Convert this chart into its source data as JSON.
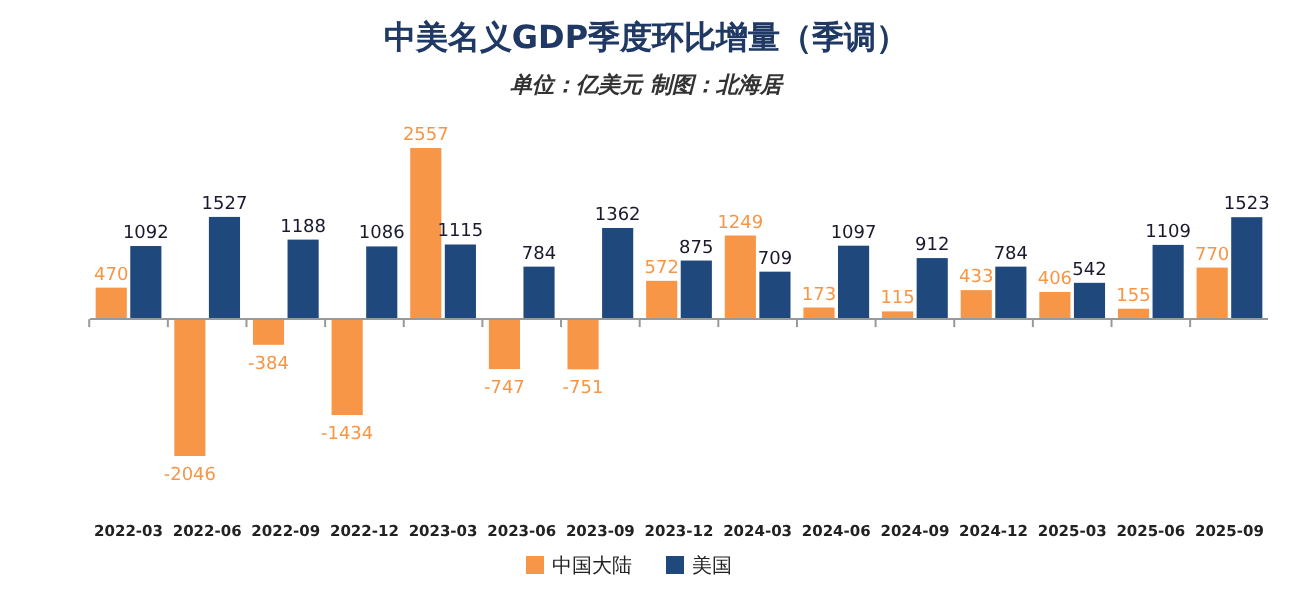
{
  "chart_data": {
    "type": "bar",
    "title": "中美名义GDP季度环比增量（季调）",
    "subtitle": "单位：亿美元 制图：北海居",
    "categories": [
      "2022-03",
      "2022-06",
      "2022-09",
      "2022-12",
      "2023-03",
      "2023-06",
      "2023-09",
      "2023-12",
      "2024-03",
      "2024-06",
      "2024-09",
      "2024-12",
      "2025-03",
      "2025-06",
      "2025-09"
    ],
    "series": [
      {
        "name": "中国大陆",
        "color": "#f79646",
        "values": [
          470,
          -2046,
          -384,
          -1434,
          2557,
          -747,
          -751,
          572,
          1249,
          173,
          115,
          433,
          406,
          155,
          770
        ]
      },
      {
        "name": "美国",
        "color": "#1f497d",
        "values": [
          1092,
          1527,
          1188,
          1086,
          1115,
          784,
          1362,
          875,
          709,
          1097,
          912,
          784,
          542,
          1109,
          1523
        ]
      }
    ],
    "data_labels": true,
    "legend": "bottom"
  }
}
